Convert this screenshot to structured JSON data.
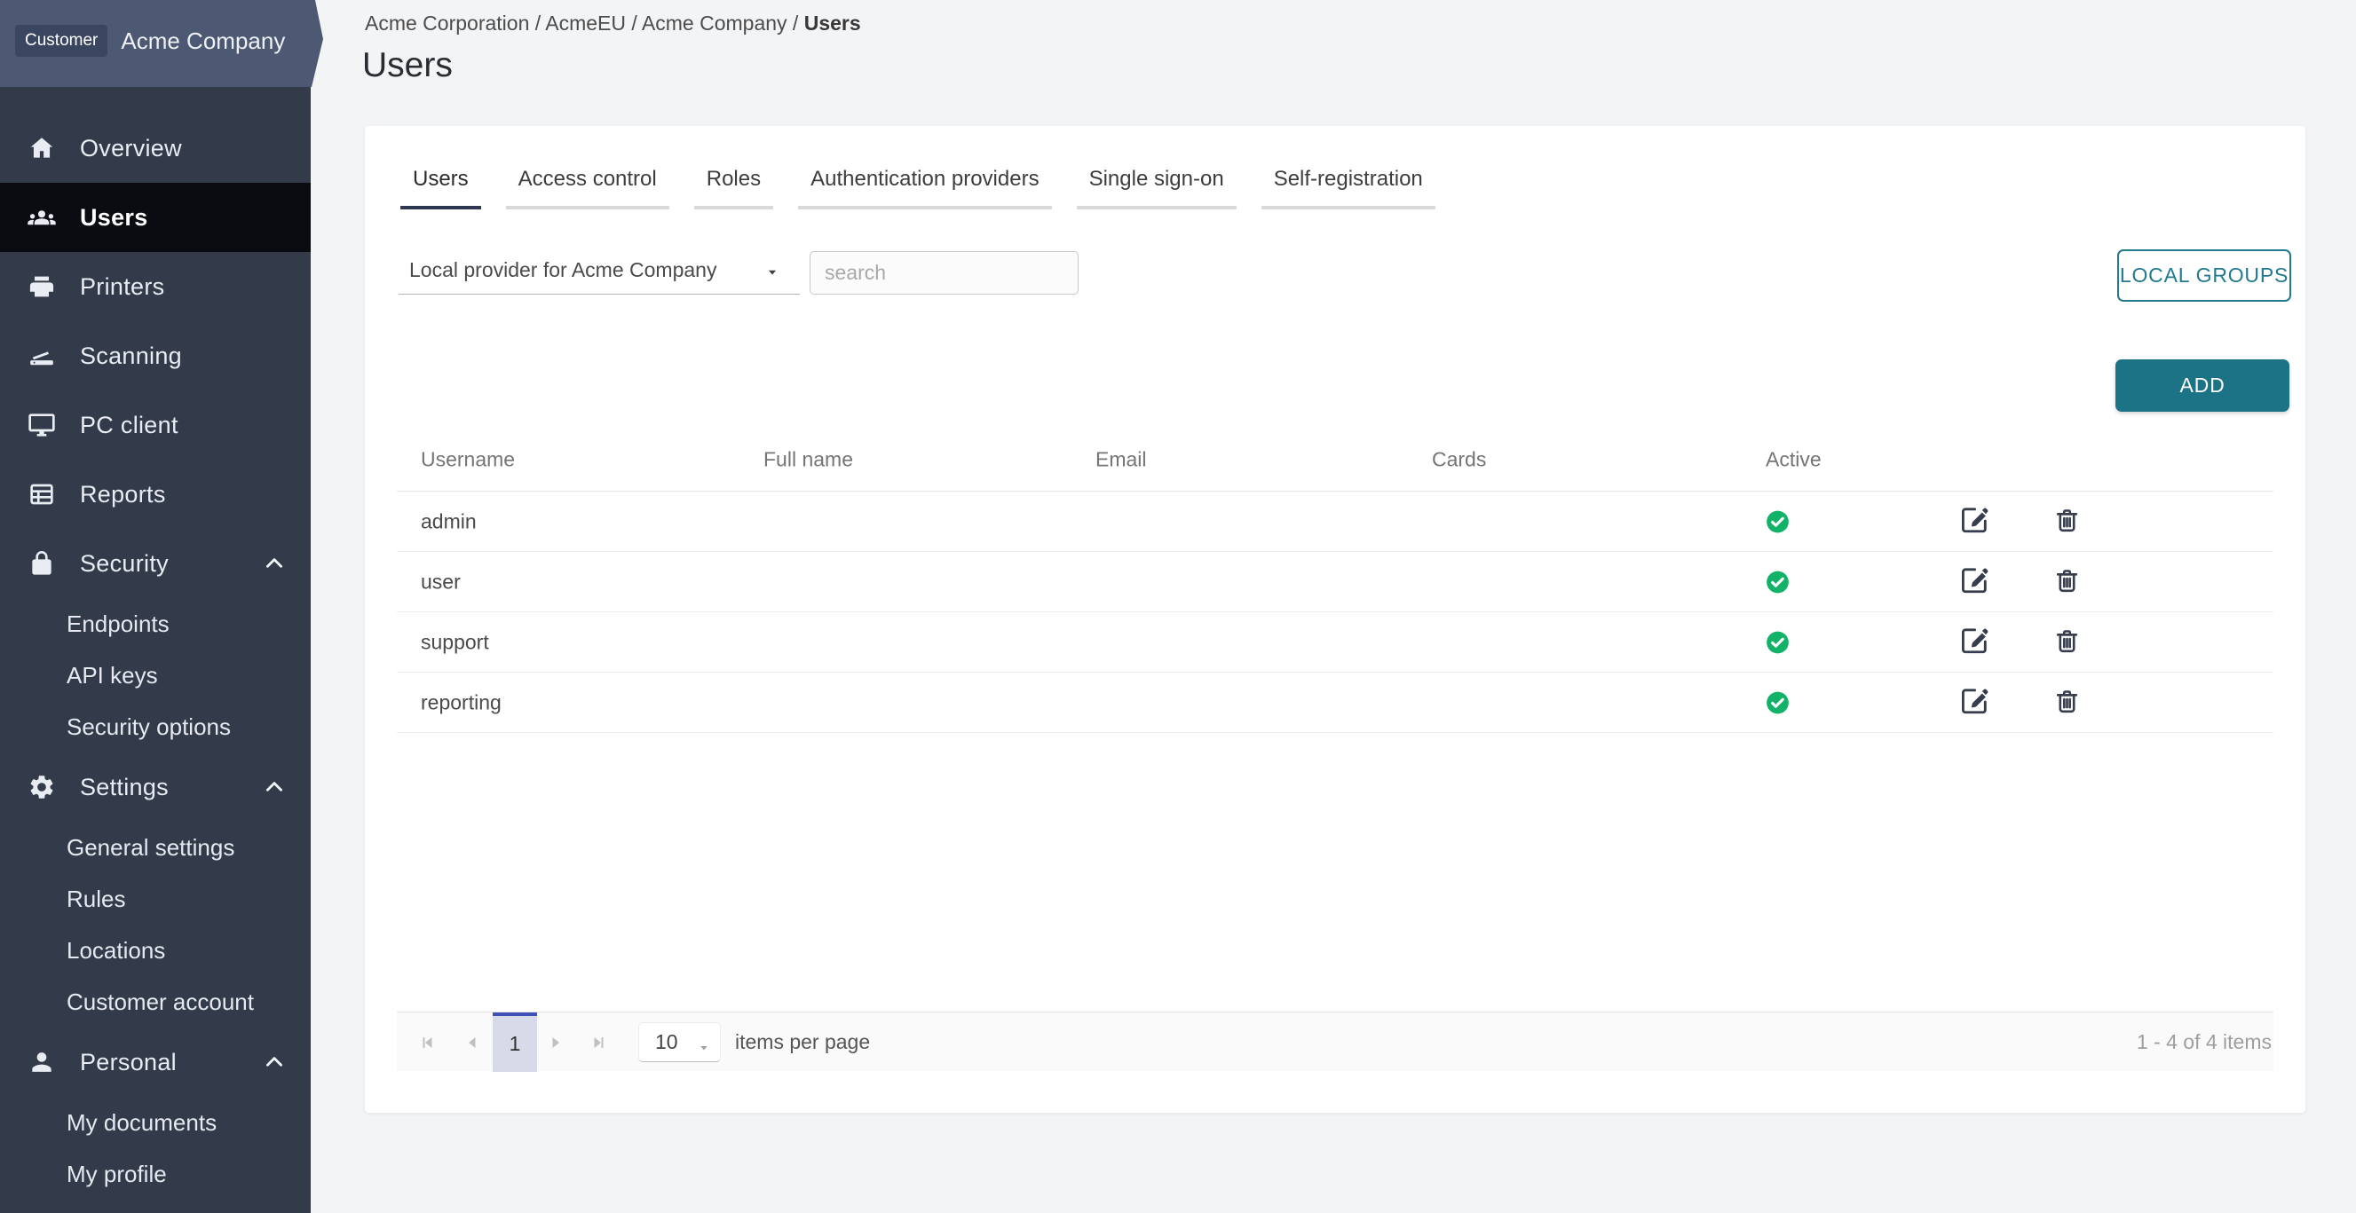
{
  "app": {
    "customer_chip": "Customer",
    "customer_name": "Acme Company"
  },
  "breadcrumb": {
    "parts": [
      "Acme Corporation",
      "AcmeEU",
      "Acme Company"
    ],
    "current": "Users",
    "separator": "/"
  },
  "page": {
    "title": "Users"
  },
  "sidebar": {
    "items": [
      {
        "label": "Overview",
        "icon": "home",
        "active": false
      },
      {
        "label": "Users",
        "icon": "users",
        "active": true
      },
      {
        "label": "Printers",
        "icon": "printer",
        "active": false
      },
      {
        "label": "Scanning",
        "icon": "scanner",
        "active": false
      },
      {
        "label": "PC client",
        "icon": "monitor",
        "active": false
      },
      {
        "label": "Reports",
        "icon": "reports",
        "active": false
      },
      {
        "label": "Security",
        "icon": "lock",
        "active": false,
        "expanded": true,
        "children": [
          "Endpoints",
          "API keys",
          "Security options"
        ]
      },
      {
        "label": "Settings",
        "icon": "gear",
        "active": false,
        "expanded": true,
        "children": [
          "General settings",
          "Rules",
          "Locations",
          "Customer account"
        ]
      },
      {
        "label": "Personal",
        "icon": "person",
        "active": false,
        "expanded": true,
        "children": [
          "My documents",
          "My profile"
        ]
      }
    ]
  },
  "tabs": [
    {
      "label": "Users",
      "active": true
    },
    {
      "label": "Access control",
      "active": false
    },
    {
      "label": "Roles",
      "active": false
    },
    {
      "label": "Authentication providers",
      "active": false
    },
    {
      "label": "Single sign-on",
      "active": false
    },
    {
      "label": "Self-registration",
      "active": false
    }
  ],
  "filters": {
    "provider_value": "Local provider for Acme Company",
    "search_placeholder": "search"
  },
  "buttons": {
    "local_groups": "LOCAL GROUPS",
    "add": "ADD"
  },
  "table": {
    "columns": [
      "Username",
      "Full name",
      "Email",
      "Cards",
      "Active"
    ],
    "rows": [
      {
        "username": "admin",
        "full_name": "",
        "email": "",
        "cards": "",
        "active": true
      },
      {
        "username": "user",
        "full_name": "",
        "email": "",
        "cards": "",
        "active": true
      },
      {
        "username": "support",
        "full_name": "",
        "email": "",
        "cards": "",
        "active": true
      },
      {
        "username": "reporting",
        "full_name": "",
        "email": "",
        "cards": "",
        "active": true
      }
    ],
    "row_action_icons": [
      "edit",
      "trash"
    ],
    "active_icon": "check-circle"
  },
  "pagination": {
    "current_page": "1",
    "page_size": "10",
    "items_per_page_label": "items per page",
    "range_label": "1 - 4 of 4 items"
  },
  "colors": {
    "sidebar_bg": "#333b4a",
    "sidebar_active_bg": "#0a0c11",
    "banner_bg": "#4d5972",
    "chip_bg": "#3a4560",
    "teal": "#217a8e",
    "teal_dark": "#1d7386",
    "green": "#12b269",
    "indigo": "#3f51b5",
    "pager_active_bg": "#d7dbe9"
  }
}
